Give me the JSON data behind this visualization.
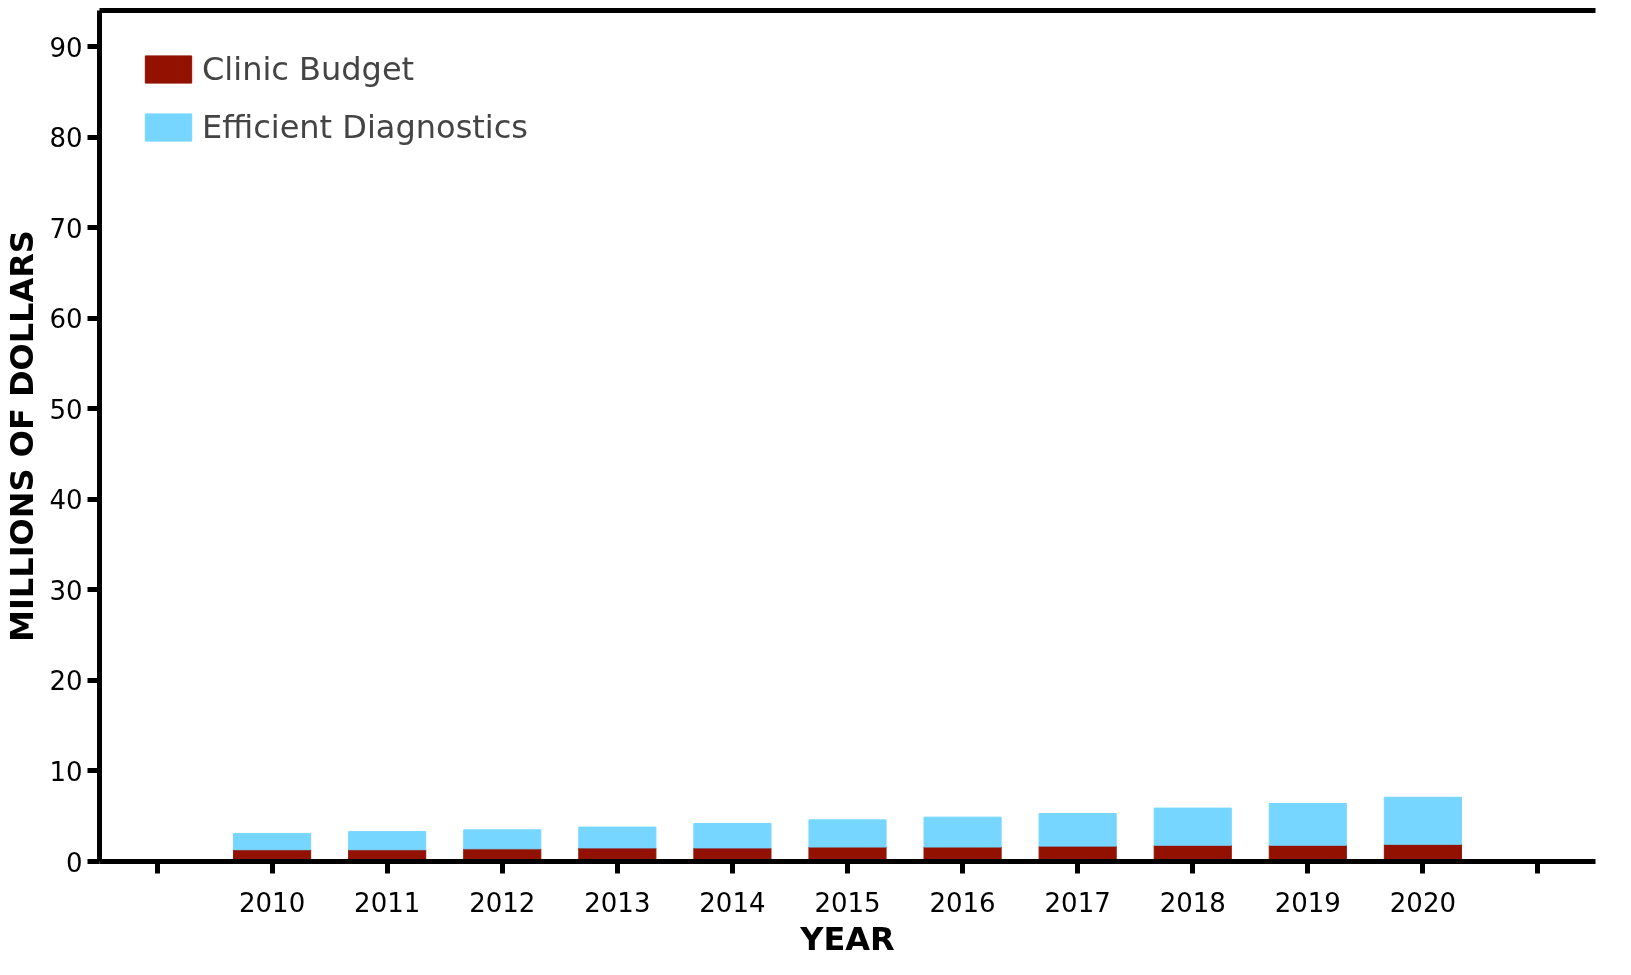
{
  "chart_data": {
    "type": "bar",
    "stacked": true,
    "xlabel": "YEAR",
    "ylabel": "MILLIONS OF DOLLARS",
    "x": [
      2010,
      2011,
      2012,
      2013,
      2014,
      2015,
      2016,
      2017,
      2018,
      2019,
      2020
    ],
    "series": [
      {
        "name": "Clinic Budget",
        "color": "#921100",
        "values": [
          1.3,
          1.3,
          1.4,
          1.5,
          1.5,
          1.6,
          1.6,
          1.7,
          1.8,
          1.8,
          1.9
        ]
      },
      {
        "name": "Efficient Diagnostics",
        "color": "#76d6ff",
        "values": [
          1.8,
          2.0,
          2.1,
          2.3,
          2.7,
          3.0,
          3.3,
          3.6,
          4.1,
          4.6,
          5.2
        ]
      }
    ],
    "xlim": [
      2008.5,
      2021.5
    ],
    "xticks": [
      {
        "value": 2009,
        "label": null
      },
      2010,
      2011,
      2012,
      2013,
      2014,
      2015,
      2016,
      2017,
      2018,
      2019,
      2020,
      {
        "value": 2021,
        "label": null
      }
    ],
    "ylim": [
      0,
      94
    ],
    "yticks": [
      0,
      10,
      20,
      30,
      40,
      50,
      60,
      70,
      80,
      90
    ],
    "grid": false,
    "legend": "top left"
  }
}
